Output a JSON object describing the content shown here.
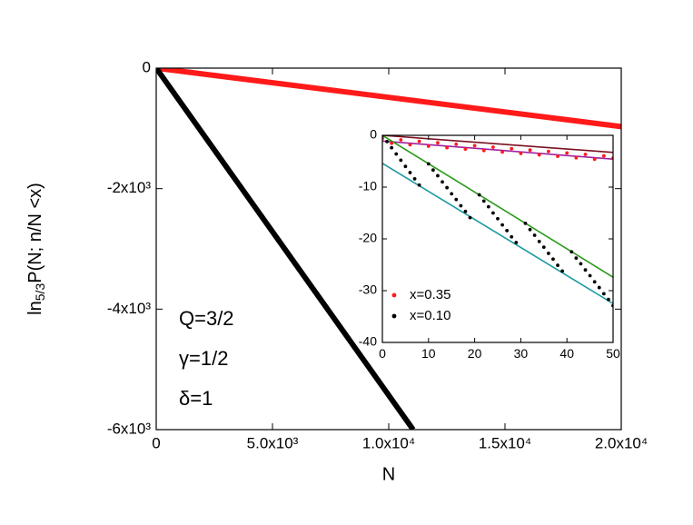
{
  "chart_data": [
    {
      "type": "line",
      "xlabel": "N",
      "ylabel": [
        "ln",
        "5/3",
        "P(N; n/N <x)"
      ],
      "xlim": [
        0,
        20000
      ],
      "ylim": [
        -6000,
        0
      ],
      "xticks": [
        0,
        {
          "value": 5000,
          "label": "5.0x10³"
        },
        {
          "value": 10000,
          "label": "1.0x10⁴"
        },
        {
          "value": 15000,
          "label": "1.5x10⁴"
        },
        {
          "value": 20000,
          "label": "2.0x10⁴"
        }
      ],
      "yticks": [
        0,
        {
          "value": -2000,
          "label": "-2x10³"
        },
        {
          "value": -4000,
          "label": "-4x10³"
        },
        {
          "value": -6000,
          "label": "-6x10³"
        }
      ],
      "annotations": [
        "Q=3/2",
        "γ=1/2",
        "δ=1"
      ],
      "series": [
        {
          "color": "#ff1a1a",
          "x": [
            0,
            20000
          ],
          "values": [
            0,
            -970
          ]
        },
        {
          "color": "#000000",
          "x": [
            0,
            11050
          ],
          "values": [
            0,
            -6000
          ]
        }
      ]
    },
    {
      "type": "line",
      "xlim": [
        0,
        50
      ],
      "ylim": [
        -40,
        0
      ],
      "xticks": [
        0,
        10,
        20,
        30,
        40,
        50
      ],
      "yticks": [
        0,
        -10,
        -20,
        -30,
        -40
      ],
      "legend": "lower left",
      "series": [
        {
          "color": "#7a1020",
          "x": [
            0,
            50
          ],
          "values": [
            0,
            -3.3
          ]
        },
        {
          "color": "#a020a0",
          "x": [
            0,
            50
          ],
          "values": [
            -1.1,
            -4.6
          ]
        },
        {
          "color": "#2a9a1a",
          "x": [
            0,
            50
          ],
          "values": [
            0,
            -27.4
          ]
        },
        {
          "color": "#1a9aa0",
          "x": [
            0,
            50
          ],
          "values": [
            -5.4,
            -32.5
          ]
        },
        {
          "name": "x=0.35",
          "color": "#ff1a1a",
          "mode": "markers",
          "x": [
            0,
            2,
            4,
            6,
            8,
            10,
            12,
            14,
            16,
            18,
            20,
            22,
            24,
            26,
            28,
            30,
            32,
            34,
            36,
            38,
            40,
            42,
            44,
            46,
            48,
            50
          ],
          "values": [
            -0.6,
            -1.54,
            -0.88,
            -1.82,
            -1.16,
            -2.1,
            -1.44,
            -2.38,
            -1.72,
            -2.66,
            -2.0,
            -2.94,
            -2.28,
            -3.22,
            -2.56,
            -3.5,
            -2.84,
            -3.78,
            -3.12,
            -4.06,
            -3.4,
            -4.34,
            -3.68,
            -4.62,
            -3.96,
            -4.4
          ]
        },
        {
          "name": "x=0.10",
          "color": "#000000",
          "mode": "markers",
          "x": [
            0,
            1,
            2,
            3,
            4,
            5,
            6,
            7,
            8,
            10,
            11,
            12,
            13,
            14,
            15,
            16,
            17,
            18,
            19,
            21,
            22,
            23,
            24,
            25,
            26,
            27,
            28,
            29,
            31,
            32,
            33,
            34,
            35,
            36,
            37,
            38,
            39,
            41,
            42,
            43,
            44,
            45,
            46,
            47,
            48,
            49,
            50
          ],
          "values": [
            0,
            -1.2,
            -2.4,
            -3.6,
            -4.8,
            -6,
            -7.2,
            -8.4,
            -9.6,
            -5.5,
            -6.7,
            -7.8,
            -9,
            -10.1,
            -11.3,
            -12.4,
            -13.6,
            -14.7,
            -15.9,
            -11.5,
            -12.7,
            -13.8,
            -15,
            -16.1,
            -17.3,
            -18.4,
            -19.6,
            -20.7,
            -17,
            -18.2,
            -19.3,
            -20.5,
            -21.6,
            -22.8,
            -23.9,
            -25.1,
            -26.2,
            -22.5,
            -23.7,
            -24.8,
            -26,
            -27.1,
            -28.3,
            -29.4,
            -30.6,
            -31.7,
            -32.9
          ]
        }
      ]
    }
  ]
}
